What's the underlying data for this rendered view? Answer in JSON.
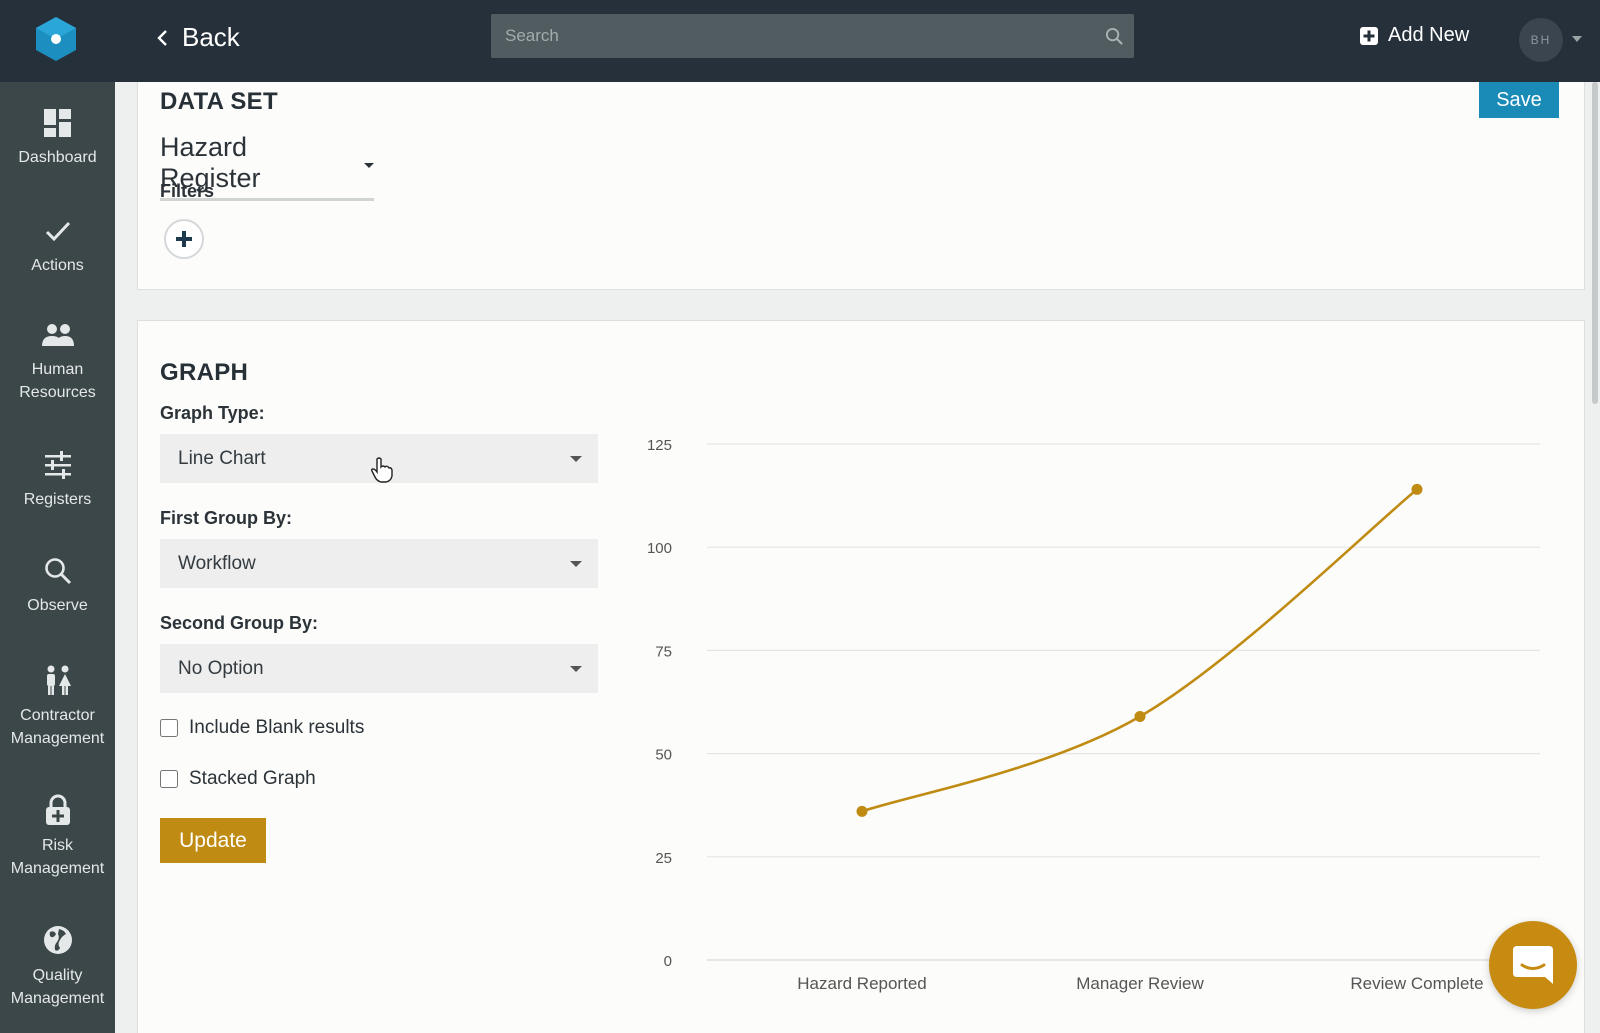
{
  "topbar": {
    "back_label": "Back",
    "search_placeholder": "Search",
    "add_new_label": "Add New",
    "avatar_initials": "BH"
  },
  "sidebar": {
    "items": [
      {
        "label": "Dashboard",
        "icon": "dashboard-icon"
      },
      {
        "label": "Actions",
        "icon": "check-icon"
      },
      {
        "label": "Human Resources",
        "icon": "people-icon"
      },
      {
        "label": "Registers",
        "icon": "sliders-icon"
      },
      {
        "label": "Observe",
        "icon": "search-icon"
      },
      {
        "label": "Contractor Management",
        "icon": "contractor-icon"
      },
      {
        "label": "Risk Management",
        "icon": "lock-plus-icon"
      },
      {
        "label": "Quality Management",
        "icon": "globe-icon"
      }
    ]
  },
  "dataset": {
    "title": "DATA SET",
    "selected": "Hazard Register",
    "filters_label": "Filters",
    "save_label": "Save"
  },
  "graph": {
    "title": "GRAPH",
    "graph_type_label": "Graph Type:",
    "graph_type_value": "Line Chart",
    "first_group_label": "First Group By:",
    "first_group_value": "Workflow",
    "second_group_label": "Second Group By:",
    "second_group_value": "No Option",
    "include_blank_label": "Include Blank results",
    "stacked_label": "Stacked Graph",
    "update_label": "Update"
  },
  "colors": {
    "topbar": "#25303a",
    "sidebar": "#3c4749",
    "accent_gold": "#c08b12",
    "save_blue": "#1a8ab6"
  },
  "chart_data": {
    "type": "line",
    "categories": [
      "Hazard Reported",
      "Manager Review",
      "Review Complete"
    ],
    "series": [
      {
        "values": [
          36,
          59,
          114
        ],
        "color": "#c08b12"
      }
    ],
    "yticks": [
      0,
      25,
      50,
      75,
      100,
      125
    ],
    "ylim": [
      0,
      125
    ],
    "grid": true
  }
}
